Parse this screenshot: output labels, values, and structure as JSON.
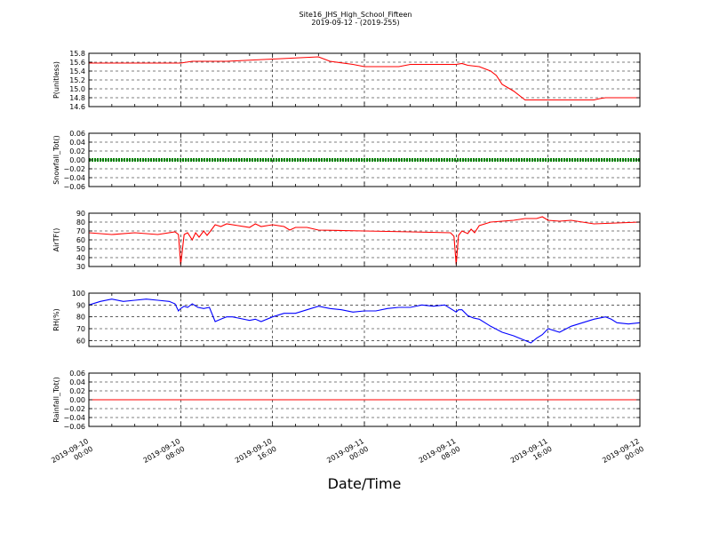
{
  "title_line1": "Site16_JHS_High_School_Fifteen",
  "title_line2": "2019-09-12 - (2019-255)",
  "xlabel": "Date/Time",
  "x_ticks": [
    {
      "l1": "2019-09-10",
      "l2": "00:00"
    },
    {
      "l1": "2019-09-10",
      "l2": "08:00"
    },
    {
      "l1": "2019-09-10",
      "l2": "16:00"
    },
    {
      "l1": "2019-09-11",
      "l2": "00:00"
    },
    {
      "l1": "2019-09-11",
      "l2": "08:00"
    },
    {
      "l1": "2019-09-11",
      "l2": "16:00"
    },
    {
      "l1": "2019-09-12",
      "l2": "00:00"
    }
  ],
  "chart_data": [
    {
      "type": "line",
      "ylabel": "P(unitless)",
      "ylim": [
        14.6,
        15.8
      ],
      "yticks": [
        "15.8",
        "15.6",
        "15.4",
        "15.2",
        "15.0",
        "14.8",
        "14.6"
      ],
      "ytick_values": [
        15.8,
        15.6,
        15.4,
        15.2,
        15.0,
        14.8,
        14.6
      ],
      "color": "#ff0000",
      "grid": true,
      "x": [
        0,
        8,
        9,
        12,
        16,
        20,
        20.5,
        21,
        23,
        24,
        25,
        27,
        28,
        31,
        32,
        32.5,
        33,
        34,
        35,
        35.5,
        36,
        37,
        38,
        40,
        44,
        44.5,
        45,
        46,
        48
      ],
      "values": [
        15.58,
        15.58,
        15.62,
        15.62,
        15.67,
        15.72,
        15.67,
        15.62,
        15.55,
        15.5,
        15.5,
        15.5,
        15.55,
        15.55,
        15.55,
        15.57,
        15.53,
        15.5,
        15.4,
        15.3,
        15.1,
        14.95,
        14.75,
        14.75,
        14.75,
        14.78,
        14.8,
        14.8,
        14.8
      ]
    },
    {
      "type": "line",
      "ylabel": "Snowfall_Tot()",
      "ylim": [
        -0.06,
        0.06
      ],
      "yticks": [
        "0.06",
        "0.04",
        "0.02",
        "0.00",
        "−0.02",
        "−0.04",
        "−0.06"
      ],
      "ytick_values": [
        0.06,
        0.04,
        0.02,
        0.0,
        -0.02,
        -0.04,
        -0.06
      ],
      "color": "#008000",
      "grid": true,
      "x": [
        0,
        48
      ],
      "values": [
        0,
        0
      ]
    },
    {
      "type": "line",
      "ylabel": "AirTF()",
      "ylim": [
        30,
        90
      ],
      "yticks": [
        "90",
        "80",
        "70",
        "60",
        "50",
        "40",
        "30"
      ],
      "ytick_values": [
        90,
        80,
        70,
        60,
        50,
        40,
        30
      ],
      "color": "#ff0000",
      "grid": true,
      "x": [
        0,
        2,
        4,
        6,
        7.5,
        7.8,
        8,
        8.3,
        8.6,
        9,
        9.3,
        9.6,
        10,
        10.3,
        10.6,
        11,
        11.5,
        12,
        13,
        14,
        14.5,
        15,
        16,
        17,
        17.5,
        18,
        19,
        20,
        24,
        28,
        31.5,
        31.8,
        32,
        32.2,
        32.5,
        33,
        33.3,
        33.6,
        34,
        35,
        36,
        37,
        38,
        39,
        39.5,
        40,
        41,
        42,
        44,
        46,
        48
      ],
      "values": [
        68,
        66,
        68,
        66,
        69,
        66,
        32,
        66,
        68,
        60,
        68,
        63,
        70,
        65,
        70,
        77,
        75,
        78,
        76,
        74,
        78,
        75,
        77,
        75,
        71,
        74,
        74,
        71,
        70,
        69,
        68,
        64,
        32,
        65,
        70,
        67,
        72,
        68,
        76,
        80,
        81,
        82,
        84,
        84,
        86,
        82,
        81,
        82,
        78,
        79,
        80
      ]
    },
    {
      "type": "line",
      "ylabel": "RH(%)",
      "ylim": [
        55,
        100
      ],
      "yticks": [
        "100",
        "90",
        "80",
        "70",
        "60"
      ],
      "ytick_values": [
        100,
        90,
        80,
        70,
        60
      ],
      "color": "#0000ff",
      "grid": true,
      "x": [
        0,
        1,
        2,
        3,
        4,
        5,
        6,
        7,
        7.5,
        7.8,
        8,
        8.3,
        8.6,
        9,
        9.5,
        10,
        10.5,
        11,
        11.5,
        12,
        12.5,
        13,
        14,
        14.5,
        15,
        16,
        17,
        18,
        19,
        20,
        21,
        22,
        23,
        24,
        25,
        26,
        27,
        28,
        29,
        30,
        31,
        32,
        32.2,
        32.5,
        33,
        33.5,
        34,
        35,
        36,
        37,
        38,
        38.5,
        39,
        39.5,
        40,
        41,
        42,
        43,
        44,
        45,
        45.5,
        46,
        47,
        48
      ],
      "values": [
        90,
        93,
        95,
        93,
        94,
        95,
        94,
        93,
        91,
        85,
        87,
        89,
        88,
        91,
        88,
        87,
        88,
        76,
        78,
        80,
        80,
        79,
        77,
        78,
        76,
        80,
        83,
        83,
        86,
        89,
        87,
        86,
        84,
        85,
        85,
        87,
        88,
        88,
        90,
        89,
        90,
        84,
        86,
        86,
        81,
        79,
        78,
        72,
        67,
        64,
        60,
        58,
        62,
        65,
        70,
        67,
        72,
        75,
        78,
        80,
        78,
        75,
        74,
        75
      ]
    },
    {
      "type": "line",
      "ylabel": "Rainfall_Tot()",
      "ylim": [
        -0.06,
        0.06
      ],
      "yticks": [
        "0.06",
        "0.04",
        "0.02",
        "0.00",
        "−0.02",
        "−0.04",
        "−0.06"
      ],
      "ytick_values": [
        0.06,
        0.04,
        0.02,
        0.0,
        -0.02,
        -0.04,
        -0.06
      ],
      "color": "#ff0000",
      "grid": true,
      "x": [
        0,
        48
      ],
      "values": [
        0,
        0
      ]
    }
  ]
}
